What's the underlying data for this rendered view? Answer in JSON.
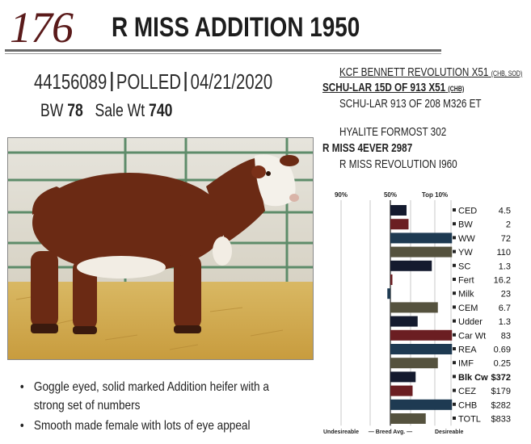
{
  "lot": {
    "number": "176",
    "name": "R  MISS ADDITION 1950"
  },
  "id_line": {
    "registration": "44156089",
    "status": "POLLED",
    "birth_date": "04/21/2020"
  },
  "weights": {
    "bw_label": "BW",
    "bw_value": "78",
    "sale_wt_label": "Sale Wt",
    "sale_wt_value": "740"
  },
  "pedigree": {
    "sire_sire": "KCF BENNETT REVOLUTION X51",
    "sire_sire_note": "(CHB, SOD)",
    "sire": "SCHU-LAR 15D OF 913 X51",
    "sire_note": "(CHB)",
    "sire_dam": "SCHU-LAR 913 OF 208 M326 ET",
    "dam_sire": "HYALITE FORMOST 302",
    "dam": "R MISS 4EVER 2987",
    "dam_dam": "R MISS REVOLUTION I960"
  },
  "bullets": [
    "Goggle eyed, solid marked Addition heifer with a",
    "strong set of numbers",
    "Smooth made female with lots of eye appeal"
  ],
  "chart_data": {
    "type": "bar",
    "percentile_labels": [
      "90%",
      "50%",
      "Top 10%"
    ],
    "footer": {
      "left": "Undesireable",
      "middle": "Breed Avg.",
      "right": "Desireable"
    },
    "categories": [
      "CED",
      "BW",
      "WW",
      "YW",
      "SC",
      "Fert",
      "Milk",
      "CEM",
      "Udder",
      "Car Wt",
      "REA",
      "IMF",
      "Blk Cw",
      "CEZ",
      "CHB",
      "TOTL"
    ],
    "values": [
      "4.5",
      "2",
      "72",
      "110",
      "1.3",
      "16.2",
      "23",
      "6.7",
      "1.3",
      "83",
      "0.69",
      "0.25",
      "$372",
      "$179",
      "$282",
      "$833"
    ],
    "percentile_scores": [
      16,
      18,
      61,
      61,
      41,
      2,
      -3,
      47,
      27,
      61,
      61,
      47,
      25,
      22,
      61,
      35
    ],
    "colors": [
      "#141a2e",
      "#6b1e22",
      "#1e3a52",
      "#55523e",
      "#141a2e",
      "#6b1e22",
      "#1e3a52",
      "#55523e",
      "#141a2e",
      "#6b1e22",
      "#1e3a52",
      "#55523e",
      "#141a2e",
      "#6b1e22",
      "#1e3a52",
      "#55523e"
    ],
    "bold_categories": [
      "Blk Cw"
    ]
  }
}
